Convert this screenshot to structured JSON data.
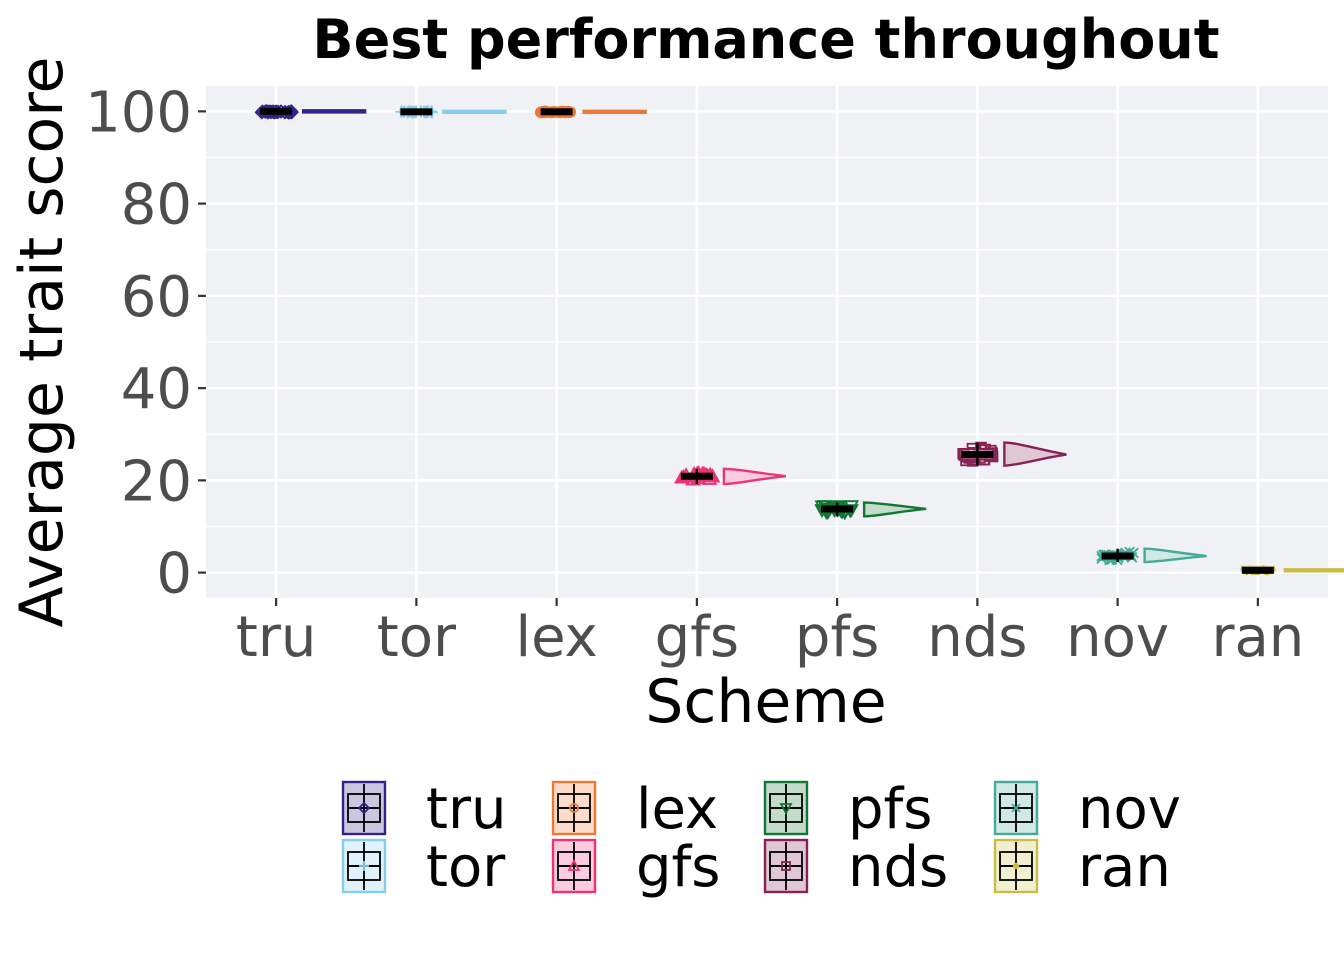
{
  "chart_data": {
    "type": "raincloud",
    "title": "Best performance throughout",
    "xlabel": "Scheme",
    "ylabel": "Average trait score",
    "ylim": [
      -5.5,
      105.5
    ],
    "yticks": [
      0,
      20,
      40,
      60,
      80,
      100
    ],
    "grid": true,
    "legend_position": "bottom",
    "categories": [
      "tru",
      "tor",
      "lex",
      "gfs",
      "pfs",
      "nds",
      "nov",
      "ran"
    ],
    "series": [
      {
        "name": "tru",
        "color": "#332288",
        "fill": "#cbc7e0",
        "marker": "diamond",
        "min": 99.6,
        "q1": 99.8,
        "median": 100,
        "q3": 100,
        "max": 100
      },
      {
        "name": "tor",
        "color": "#88ccee",
        "fill": "#e1f2fb",
        "marker": "plus",
        "min": 99.6,
        "q1": 99.8,
        "median": 99.9,
        "q3": 100,
        "max": 100
      },
      {
        "name": "lex",
        "color": "#ee7733",
        "fill": "#fbdccb",
        "marker": "circle",
        "min": 99.6,
        "q1": 99.8,
        "median": 99.9,
        "q3": 100,
        "max": 100
      },
      {
        "name": "gfs",
        "color": "#ee3377",
        "fill": "#fbccdd",
        "marker": "triangle",
        "min": 19.2,
        "q1": 20.3,
        "median": 20.9,
        "q3": 21.4,
        "max": 22.5
      },
      {
        "name": "pfs",
        "color": "#117733",
        "fill": "#c3dccb",
        "marker": "triangle-down",
        "min": 12.2,
        "q1": 13.2,
        "median": 13.8,
        "q3": 14.4,
        "max": 15.2
      },
      {
        "name": "nds",
        "color": "#882255",
        "fill": "#e0c7d4",
        "marker": "square",
        "min": 23.2,
        "q1": 24.5,
        "median": 25.6,
        "q3": 26.8,
        "max": 28.2
      },
      {
        "name": "nov",
        "color": "#44aa99",
        "fill": "#d0e9e5",
        "marker": "cross",
        "min": 2.3,
        "q1": 3.0,
        "median": 3.6,
        "q3": 4.3,
        "max": 5.2
      },
      {
        "name": "ran",
        "color": "#ccbb44",
        "fill": "#f2eed0",
        "marker": "dot",
        "min": 0.1,
        "q1": 0.3,
        "median": 0.5,
        "q3": 0.8,
        "max": 1.2
      }
    ]
  }
}
